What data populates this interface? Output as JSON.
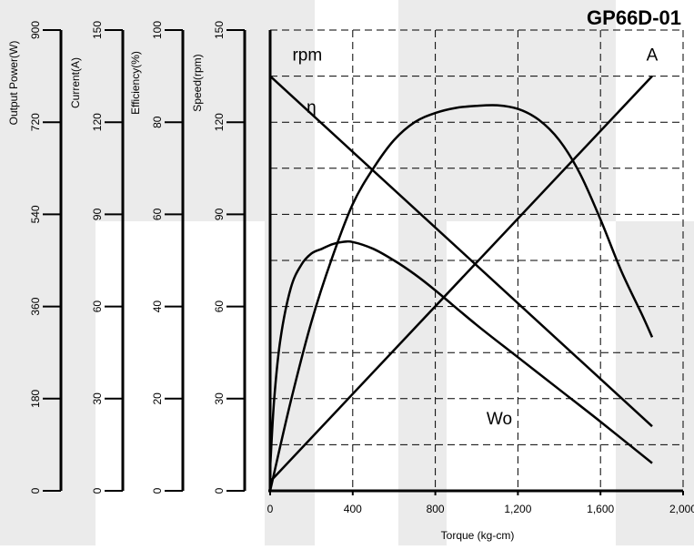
{
  "chart_data": {
    "type": "line",
    "title": "GP66D-01",
    "xlabel": "Torque (kg-cm)",
    "xlim": [
      0,
      2000
    ],
    "x_ticks": [
      "0",
      "400",
      "800",
      "1,200",
      "1,600",
      "2,000"
    ],
    "x_grid": [
      0,
      400,
      800,
      1200,
      1600,
      2000
    ],
    "grid": true,
    "band_colors": [
      "#ebebeb",
      "#ffffff"
    ],
    "axes": [
      {
        "key": "power",
        "label": "Output Power(W)",
        "min": 0,
        "max": 900,
        "ticks": [
          "0",
          "180",
          "360",
          "540",
          "720",
          "900"
        ]
      },
      {
        "key": "current",
        "label": "Current(A)",
        "min": 0,
        "max": 150,
        "ticks": [
          "0",
          "30",
          "60",
          "90",
          "120",
          "150"
        ]
      },
      {
        "key": "efficiency",
        "label": "Efficiency(%)",
        "min": 0,
        "max": 100,
        "ticks": [
          "0",
          "20",
          "40",
          "60",
          "80",
          "100"
        ]
      },
      {
        "key": "speed",
        "label": "Speed(rpm)",
        "min": 0,
        "max": 150,
        "ticks": [
          "0",
          "30",
          "60",
          "90",
          "120",
          "150"
        ]
      }
    ],
    "series": [
      {
        "name": "rpm",
        "axis": "speed",
        "x": [
          0,
          1850
        ],
        "y": [
          135,
          21
        ],
        "label_at": [
          180,
          140
        ]
      },
      {
        "name": "A",
        "axis": "current",
        "x": [
          0,
          1850
        ],
        "y": [
          3,
          135
        ],
        "label_at": [
          1850,
          140
        ]
      },
      {
        "name": "Wo",
        "axis": "power",
        "x": [
          0,
          100,
          200,
          300,
          400,
          500,
          600,
          700,
          800,
          900,
          1000,
          1100,
          1200,
          1300,
          1400,
          1500,
          1600,
          1700,
          1800,
          1850
        ],
        "y": [
          0,
          175,
          330,
          455,
          560,
          630,
          685,
          720,
          738,
          748,
          752,
          753,
          746,
          725,
          685,
          620,
          530,
          430,
          345,
          300
        ],
        "label_at": [
          1110,
          130
        ]
      },
      {
        "name": "η",
        "axis": "efficiency",
        "x": [
          0,
          20,
          50,
          100,
          150,
          200,
          250,
          300,
          350,
          400,
          500,
          600,
          700,
          800,
          1000,
          1200,
          1400,
          1600,
          1850
        ],
        "y": [
          5,
          20,
          33,
          44,
          49,
          51.5,
          52.5,
          53.5,
          54,
          54,
          52.5,
          50,
          47,
          43.5,
          36,
          29,
          22,
          15,
          6
        ],
        "label_at": [
          200,
          82
        ]
      }
    ]
  }
}
